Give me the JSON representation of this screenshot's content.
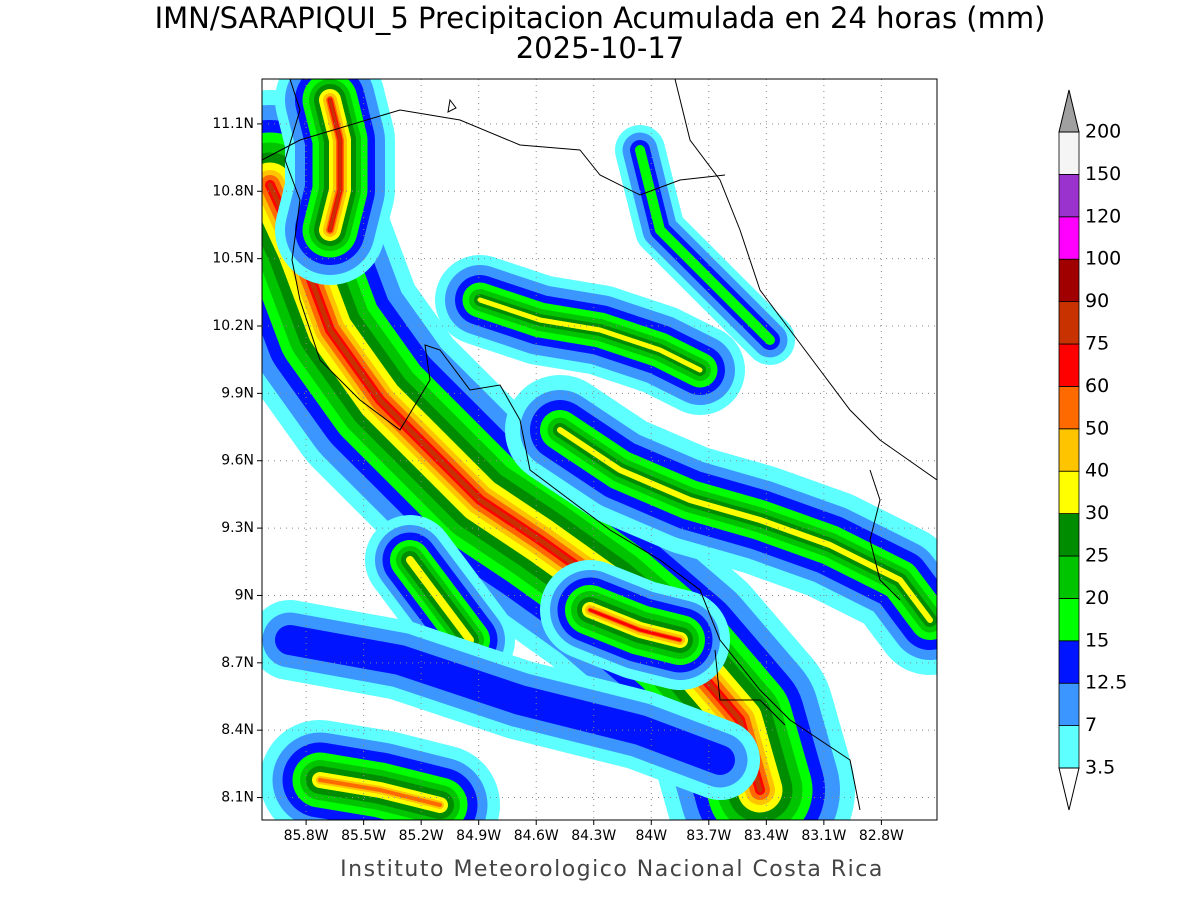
{
  "title": "IMN/SARAPIQUI_5 Precipitacion Acumulada en 24 horas (mm)",
  "subtitle": "2025-10-17",
  "footer": "Instituto Meteorologico Nacional Costa Rica",
  "map": {
    "xlim": [
      -86.03,
      -82.51
    ],
    "ylim": [
      8.0,
      11.3
    ],
    "grid": true,
    "xticks": [
      {
        "value": -85.8,
        "label": "85.8W"
      },
      {
        "value": -85.5,
        "label": "85.5W"
      },
      {
        "value": -85.2,
        "label": "85.2W"
      },
      {
        "value": -84.9,
        "label": "84.9W"
      },
      {
        "value": -84.6,
        "label": "84.6W"
      },
      {
        "value": -84.3,
        "label": "84.3W"
      },
      {
        "value": -84.0,
        "label": "84W"
      },
      {
        "value": -83.7,
        "label": "83.7W"
      },
      {
        "value": -83.4,
        "label": "83.4W"
      },
      {
        "value": -83.1,
        "label": "83.1W"
      },
      {
        "value": -82.8,
        "label": "82.8W"
      }
    ],
    "yticks": [
      {
        "value": 8.1,
        "label": "8.1N"
      },
      {
        "value": 8.4,
        "label": "8.4N"
      },
      {
        "value": 8.7,
        "label": "8.7N"
      },
      {
        "value": 9.0,
        "label": "9N"
      },
      {
        "value": 9.3,
        "label": "9.3N"
      },
      {
        "value": 9.6,
        "label": "9.6N"
      },
      {
        "value": 9.9,
        "label": "9.9N"
      },
      {
        "value": 10.2,
        "label": "10.2N"
      },
      {
        "value": 10.5,
        "label": "10.5N"
      },
      {
        "value": 10.8,
        "label": "10.8N"
      },
      {
        "value": 11.1,
        "label": "11.1N"
      }
    ],
    "colorbar": {
      "levels": [
        3.5,
        7,
        12.5,
        15,
        20,
        25,
        30,
        40,
        50,
        60,
        75,
        90,
        100,
        120,
        150,
        200
      ],
      "colors": [
        "#5effff",
        "#3c96ff",
        "#0014ff",
        "#00ff00",
        "#00c400",
        "#008c00",
        "#ffff00",
        "#ffc400",
        "#ff6a00",
        "#ff0000",
        "#c83200",
        "#a00000",
        "#ff00ff",
        "#9a32cd",
        "#f5f5f5"
      ],
      "under_color": "#ffffff",
      "over_color": "#a0a0a0"
    }
  }
}
